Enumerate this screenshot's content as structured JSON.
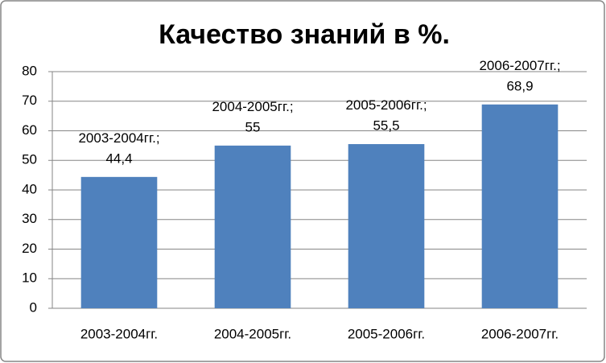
{
  "chart_data": {
    "type": "bar",
    "title": "Качество знаний в %.",
    "categories": [
      "2003-2004гг.",
      "2004-2005гг.",
      "2005-2006гг.",
      "2006-2007гг."
    ],
    "values": [
      44.4,
      55,
      55.5,
      68.9
    ],
    "value_labels": [
      "44,4",
      "55",
      "55,5",
      "68,9"
    ],
    "label_separator": ";",
    "color": "#4f81bd",
    "ylim": [
      0,
      80
    ],
    "yticks": [
      0,
      10,
      20,
      30,
      40,
      50,
      60,
      70,
      80
    ],
    "grid": true
  }
}
